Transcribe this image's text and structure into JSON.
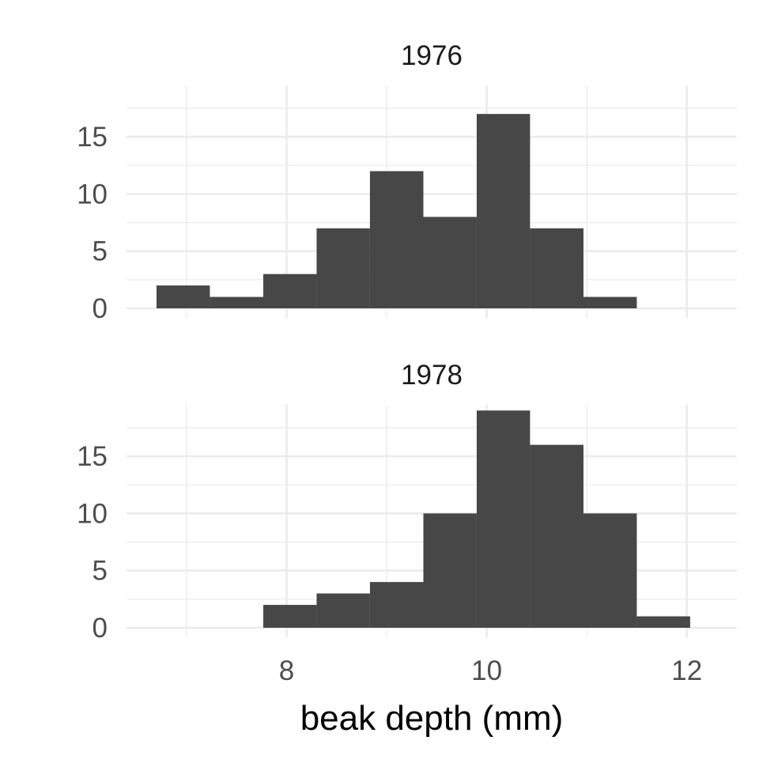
{
  "chart_data": {
    "type": "bar",
    "xlabel": "beak depth (mm)",
    "ylabel": "",
    "xlim": [
      6.4,
      12.5
    ],
    "ylim": [
      0,
      19.5
    ],
    "x_ticks": [
      8,
      10,
      12
    ],
    "y_ticks": [
      0,
      5,
      10,
      15
    ],
    "bin_edges": [
      6.7,
      7.233,
      7.767,
      8.3,
      8.833,
      9.367,
      9.9,
      10.433,
      10.967,
      11.5,
      12.033
    ],
    "grid": true,
    "legend": "none",
    "panels": [
      {
        "label": "1976",
        "counts": [
          2,
          1,
          3,
          7,
          12,
          8,
          17,
          7,
          1,
          0
        ]
      },
      {
        "label": "1978",
        "counts": [
          0,
          0,
          2,
          3,
          4,
          10,
          19,
          16,
          10,
          1
        ]
      }
    ]
  },
  "colors": {
    "bar": "#474747",
    "grid": "#ebebeb",
    "tick_text": "#4d4d4d"
  }
}
